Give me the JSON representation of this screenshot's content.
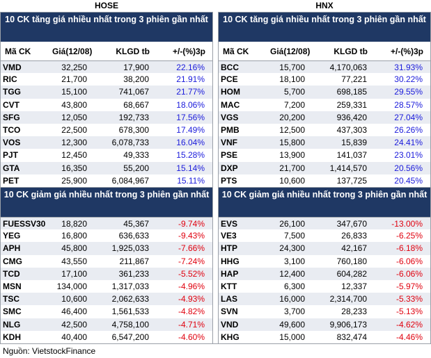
{
  "exchanges": {
    "left": "HOSE",
    "right": "HNX"
  },
  "columns": {
    "ticker": "Mã CK",
    "price": "Giá(12/08)",
    "volume": "KLGD tb",
    "change": "+/-(%)3p"
  },
  "titles": {
    "gainers": "10 CK tăng giá nhiều nhất trong 3 phiên gần nhất",
    "losers": "10 CK giảm giá nhiều nhất trong 3 phiên gần nhất"
  },
  "colors": {
    "header_bg": "#1f3864",
    "up": "#1a1adb",
    "down": "#e0000e",
    "stripe": "#e9ecf2"
  },
  "hose_gainers": [
    {
      "ticker": "VMD",
      "price": "32,250",
      "volume": "17,900",
      "change": "22.16%"
    },
    {
      "ticker": "RIC",
      "price": "21,700",
      "volume": "38,200",
      "change": "21.91%"
    },
    {
      "ticker": "TGG",
      "price": "15,100",
      "volume": "741,067",
      "change": "21.77%"
    },
    {
      "ticker": "CVT",
      "price": "43,800",
      "volume": "68,667",
      "change": "18.06%"
    },
    {
      "ticker": "SFG",
      "price": "12,050",
      "volume": "192,733",
      "change": "17.56%"
    },
    {
      "ticker": "TCO",
      "price": "22,500",
      "volume": "678,300",
      "change": "17.49%"
    },
    {
      "ticker": "VOS",
      "price": "12,300",
      "volume": "6,078,733",
      "change": "16.04%"
    },
    {
      "ticker": "PJT",
      "price": "12,450",
      "volume": "49,333",
      "change": "15.28%"
    },
    {
      "ticker": "GTA",
      "price": "16,350",
      "volume": "55,200",
      "change": "15.14%"
    },
    {
      "ticker": "PET",
      "price": "25,900",
      "volume": "6,084,967",
      "change": "15.11%"
    }
  ],
  "hnx_gainers": [
    {
      "ticker": "BCC",
      "price": "15,700",
      "volume": "4,170,063",
      "change": "31.93%"
    },
    {
      "ticker": "PCE",
      "price": "18,100",
      "volume": "77,221",
      "change": "30.22%"
    },
    {
      "ticker": "HOM",
      "price": "5,700",
      "volume": "698,185",
      "change": "29.55%"
    },
    {
      "ticker": "MAC",
      "price": "7,200",
      "volume": "259,331",
      "change": "28.57%"
    },
    {
      "ticker": "VGS",
      "price": "20,200",
      "volume": "936,420",
      "change": "27.04%"
    },
    {
      "ticker": "PMB",
      "price": "12,500",
      "volume": "437,303",
      "change": "26.26%"
    },
    {
      "ticker": "VNF",
      "price": "15,800",
      "volume": "15,839",
      "change": "24.41%"
    },
    {
      "ticker": "PSE",
      "price": "13,900",
      "volume": "141,037",
      "change": "23.01%"
    },
    {
      "ticker": "DXP",
      "price": "21,700",
      "volume": "1,414,570",
      "change": "20.56%"
    },
    {
      "ticker": "PTS",
      "price": "10,600",
      "volume": "137,725",
      "change": "20.45%"
    }
  ],
  "hose_losers": [
    {
      "ticker": "FUESSV30",
      "price": "18,820",
      "volume": "45,367",
      "change": "-9.74%"
    },
    {
      "ticker": "YEG",
      "price": "16,800",
      "volume": "636,633",
      "change": "-9.43%"
    },
    {
      "ticker": "APH",
      "price": "45,800",
      "volume": "1,925,033",
      "change": "-7.66%"
    },
    {
      "ticker": "CMG",
      "price": "43,550",
      "volume": "211,867",
      "change": "-7.24%"
    },
    {
      "ticker": "TCD",
      "price": "17,100",
      "volume": "361,233",
      "change": "-5.52%"
    },
    {
      "ticker": "MSN",
      "price": "134,000",
      "volume": "1,317,033",
      "change": "-4.96%"
    },
    {
      "ticker": "TSC",
      "price": "10,600",
      "volume": "2,062,633",
      "change": "-4.93%"
    },
    {
      "ticker": "SMC",
      "price": "46,400",
      "volume": "1,561,533",
      "change": "-4.82%"
    },
    {
      "ticker": "NLG",
      "price": "42,500",
      "volume": "4,758,100",
      "change": "-4.71%"
    },
    {
      "ticker": "KDH",
      "price": "40,400",
      "volume": "6,547,200",
      "change": "-4.60%"
    }
  ],
  "hnx_losers": [
    {
      "ticker": "EVS",
      "price": "26,100",
      "volume": "347,670",
      "change": "-13.00%"
    },
    {
      "ticker": "VE3",
      "price": "7,500",
      "volume": "26,833",
      "change": "-6.25%"
    },
    {
      "ticker": "HTP",
      "price": "24,300",
      "volume": "42,167",
      "change": "-6.18%"
    },
    {
      "ticker": "HHG",
      "price": "3,100",
      "volume": "760,180",
      "change": "-6.06%"
    },
    {
      "ticker": "HAP",
      "price": "12,400",
      "volume": "604,282",
      "change": "-6.06%"
    },
    {
      "ticker": "KTT",
      "price": "6,300",
      "volume": "12,337",
      "change": "-5.97%"
    },
    {
      "ticker": "LAS",
      "price": "16,000",
      "volume": "2,314,700",
      "change": "-5.33%"
    },
    {
      "ticker": "SVN",
      "price": "3,700",
      "volume": "28,233",
      "change": "-5.13%"
    },
    {
      "ticker": "VND",
      "price": "49,600",
      "volume": "9,906,173",
      "change": "-4.62%"
    },
    {
      "ticker": "KHG",
      "price": "15,000",
      "volume": "832,474",
      "change": "-4.46%"
    }
  ],
  "source": "Nguồn: VietstockFinance"
}
